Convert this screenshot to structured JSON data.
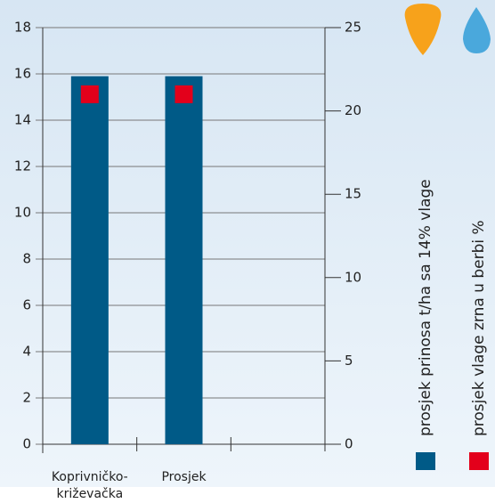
{
  "chart_data": {
    "type": "bar",
    "categories": [
      "Koprivničko-križevačka",
      "Prosjek",
      null
    ],
    "series": [
      {
        "name": "prosjek prinosa t/ha sa 14% vlage",
        "color": "#005a87",
        "values": [
          15.9,
          15.9,
          null
        ]
      },
      {
        "name": "prosjek vlage zrna u berbi %",
        "color": "#e3001b",
        "axis": "y2",
        "values": [
          21,
          21,
          null
        ]
      }
    ],
    "ylim": [
      0,
      18
    ],
    "yticks": [
      0,
      2,
      4,
      6,
      8,
      10,
      12,
      14,
      16,
      18
    ],
    "y2lim": [
      0,
      25
    ],
    "y2ticks": [
      0,
      5,
      10,
      15,
      20,
      25
    ],
    "grid": true
  }
}
